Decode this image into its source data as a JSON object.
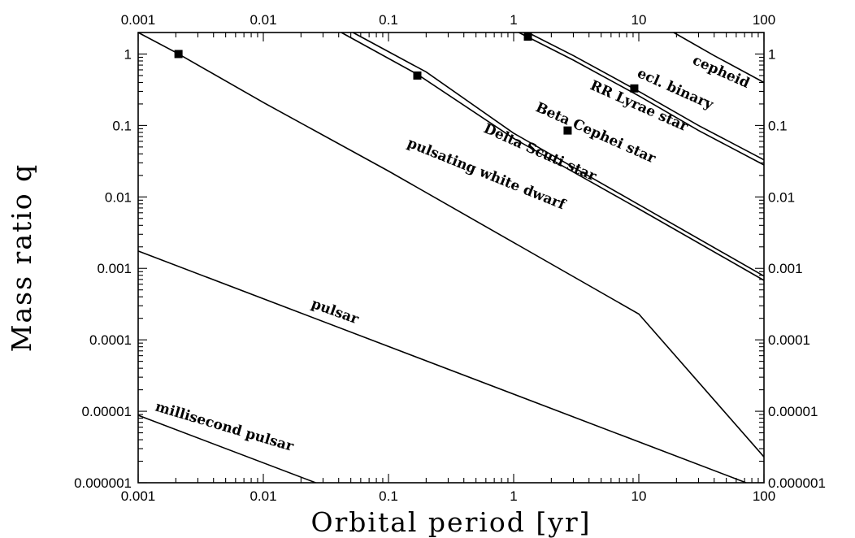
{
  "chart_data": {
    "type": "line",
    "xlabel": "Orbital period [yr]",
    "ylabel": "Mass ratio q",
    "xscale": "log",
    "yscale": "log",
    "xlim": [
      0.001,
      100
    ],
    "ylim": [
      1e-06,
      2
    ],
    "grid": false,
    "legend": "none",
    "x_tick_labels": [
      "0.001",
      "0.01",
      "0.1",
      "1",
      "10",
      "100"
    ],
    "x_top_tick_labels": [
      "0.001",
      "0.01",
      "0.1",
      "1",
      "10",
      "100"
    ],
    "y_tick_labels": [
      "0.000001",
      "0.00001",
      "0.0001",
      "0.001",
      "0.01",
      "0.1",
      "1"
    ],
    "y_right_tick_labels": [
      "0.000001",
      "0.00001",
      "0.0001",
      "0.001",
      "0.01",
      "0.1",
      "1"
    ],
    "series": [
      {
        "name": "millisecond pulsar",
        "x": [
          0.001,
          0.0262
        ],
        "y": [
          8.8e-06,
          1e-06
        ]
      },
      {
        "name": "pulsar",
        "x": [
          0.001,
          72
        ],
        "y": [
          0.00175,
          1e-06
        ]
      },
      {
        "name": "pulsating white dwarf",
        "x": [
          0.001,
          0.002,
          0.01,
          0.1,
          1,
          10,
          100
        ],
        "y": [
          2.0,
          1.05,
          0.21,
          0.023,
          0.0023,
          0.00023,
          2.3e-06
        ]
      },
      {
        "name": "Delta Scuti star",
        "x": [
          0.042,
          0.17,
          1,
          10,
          100
        ],
        "y": [
          2.0,
          0.52,
          0.066,
          0.0068,
          0.00068
        ]
      },
      {
        "name": "Beta Cephei star",
        "x": [
          0.052,
          0.2,
          1,
          10,
          100
        ],
        "y": [
          2.0,
          0.56,
          0.078,
          0.0078,
          0.00078
        ]
      },
      {
        "name": "RR Lyrae star",
        "x": [
          1.1,
          3,
          10,
          30,
          100
        ],
        "y": [
          2.0,
          0.82,
          0.26,
          0.085,
          0.028
        ]
      },
      {
        "name": "ecl. binary",
        "x": [
          1.3,
          3,
          10,
          30,
          100
        ],
        "y": [
          2.0,
          0.95,
          0.3,
          0.1,
          0.033
        ]
      },
      {
        "name": "cepheid",
        "x": [
          19,
          40,
          100
        ],
        "y": [
          2.0,
          0.95,
          0.4
        ]
      }
    ],
    "markers": [
      {
        "x": 0.0021,
        "y": 1.0
      },
      {
        "x": 0.17,
        "y": 0.5
      },
      {
        "x": 1.3,
        "y": 1.75
      },
      {
        "x": 2.7,
        "y": 0.085
      },
      {
        "x": 9.2,
        "y": 0.33
      }
    ]
  }
}
